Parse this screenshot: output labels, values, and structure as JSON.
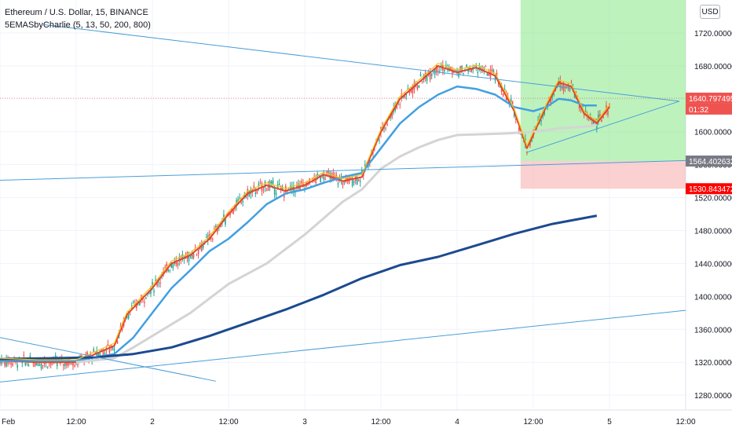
{
  "legend": {
    "symbol": "Ethereum / U.S. Dollar, 15, BINANCE",
    "indicator": "5EMASbyCharlie (5, 13, 50, 200, 800)"
  },
  "currency_button": "USD",
  "colors": {
    "up": "#26a69a",
    "down": "#ef5350",
    "ema5": "#f5c518",
    "ema13": "#e0452e",
    "ema50": "#42a0e0",
    "ema200": "#d4d4d4",
    "ema800": "#1c4a8f",
    "trendline": "#4a9fd8",
    "profit_zone": "#7be57b",
    "loss_zone": "#f7b7b7"
  },
  "chart_data": {
    "type": "candlestick",
    "title": "Ethereum / U.S. Dollar, 15, BINANCE",
    "x_ticks": [
      "Feb",
      "12:00",
      "2",
      "12:00",
      "3",
      "12:00",
      "4",
      "12:00",
      "5",
      "12:00"
    ],
    "x_range_hours": [
      0,
      108
    ],
    "y_ticks": [
      1280,
      1320,
      1360,
      1400,
      1440,
      1480,
      1520,
      1560,
      1600,
      1640,
      1680,
      1720
    ],
    "y_range": [
      1262,
      1760
    ],
    "series": [
      {
        "name": "EMA 13",
        "points": [
          [
            0,
            1322
          ],
          [
            6,
            1320
          ],
          [
            12,
            1320
          ],
          [
            18,
            1340
          ],
          [
            20,
            1378
          ],
          [
            24,
            1410
          ],
          [
            27,
            1440
          ],
          [
            30,
            1450
          ],
          [
            33,
            1470
          ],
          [
            36,
            1500
          ],
          [
            39,
            1525
          ],
          [
            42,
            1535
          ],
          [
            45,
            1528
          ],
          [
            48,
            1535
          ],
          [
            51,
            1548
          ],
          [
            54,
            1540
          ],
          [
            57,
            1545
          ],
          [
            60,
            1600
          ],
          [
            63,
            1640
          ],
          [
            66,
            1660
          ],
          [
            69,
            1680
          ],
          [
            72,
            1672
          ],
          [
            75,
            1678
          ],
          [
            78,
            1668
          ],
          [
            81,
            1625
          ],
          [
            83,
            1580
          ],
          [
            86,
            1630
          ],
          [
            88,
            1660
          ],
          [
            90,
            1655
          ],
          [
            92,
            1622
          ],
          [
            94,
            1610
          ],
          [
            96,
            1630
          ]
        ]
      },
      {
        "name": "EMA 50",
        "points": [
          [
            0,
            1322
          ],
          [
            12,
            1322
          ],
          [
            18,
            1330
          ],
          [
            21,
            1350
          ],
          [
            24,
            1380
          ],
          [
            27,
            1410
          ],
          [
            30,
            1432
          ],
          [
            33,
            1455
          ],
          [
            36,
            1470
          ],
          [
            39,
            1490
          ],
          [
            42,
            1512
          ],
          [
            45,
            1525
          ],
          [
            48,
            1530
          ],
          [
            51,
            1538
          ],
          [
            54,
            1545
          ],
          [
            57,
            1550
          ],
          [
            60,
            1580
          ],
          [
            63,
            1610
          ],
          [
            66,
            1630
          ],
          [
            69,
            1645
          ],
          [
            72,
            1655
          ],
          [
            75,
            1652
          ],
          [
            78,
            1645
          ],
          [
            81,
            1630
          ],
          [
            84,
            1625
          ],
          [
            86,
            1630
          ],
          [
            88,
            1640
          ],
          [
            90,
            1638
          ],
          [
            92,
            1632
          ],
          [
            94,
            1632
          ]
        ]
      },
      {
        "name": "EMA 200",
        "points": [
          [
            12,
            1320
          ],
          [
            18,
            1325
          ],
          [
            21,
            1338
          ],
          [
            24,
            1352
          ],
          [
            30,
            1380
          ],
          [
            36,
            1415
          ],
          [
            42,
            1440
          ],
          [
            48,
            1475
          ],
          [
            51,
            1495
          ],
          [
            54,
            1515
          ],
          [
            57,
            1530
          ],
          [
            60,
            1555
          ],
          [
            63,
            1570
          ],
          [
            66,
            1581
          ],
          [
            69,
            1590
          ],
          [
            72,
            1596
          ],
          [
            76,
            1597
          ],
          [
            80,
            1598
          ],
          [
            84,
            1600
          ],
          [
            88,
            1604
          ],
          [
            92,
            1606
          ],
          [
            94,
            1608
          ]
        ]
      },
      {
        "name": "EMA 800",
        "points": [
          [
            0,
            1324
          ],
          [
            9,
            1325
          ],
          [
            15,
            1326
          ],
          [
            21,
            1330
          ],
          [
            27,
            1338
          ],
          [
            33,
            1352
          ],
          [
            39,
            1368
          ],
          [
            45,
            1384
          ],
          [
            51,
            1402
          ],
          [
            57,
            1422
          ],
          [
            63,
            1438
          ],
          [
            69,
            1448
          ],
          [
            75,
            1462
          ],
          [
            81,
            1476
          ],
          [
            87,
            1488
          ],
          [
            94,
            1498
          ]
        ]
      }
    ],
    "price_tags": [
      {
        "label": "1640.797495",
        "value": 1640.8,
        "color": "#ef5350"
      },
      {
        "label": "01:32",
        "value": 1627.5,
        "color": "#ef5350"
      },
      {
        "label": "1564.402632",
        "value": 1564.4,
        "color": "#787b86"
      },
      {
        "label": "1530.843472",
        "value": 1530.8,
        "color": "#ff0000"
      }
    ],
    "zones": {
      "entry": 1564.4,
      "target": 1760,
      "stop": 1530.8,
      "start_hour": 82,
      "end_hour": 108
    },
    "trendlines": [
      {
        "from": [
          7,
          1730
        ],
        "to": [
          107,
          1637
        ]
      },
      {
        "from": [
          83,
          1575
        ],
        "to": [
          107,
          1637
        ]
      },
      {
        "from": [
          0,
          1541
        ],
        "to": [
          108,
          1565
        ]
      },
      {
        "from": [
          0,
          1296
        ],
        "to": [
          108,
          1383
        ]
      },
      {
        "from": [
          0,
          1350
        ],
        "to": [
          34,
          1297
        ]
      }
    ]
  }
}
